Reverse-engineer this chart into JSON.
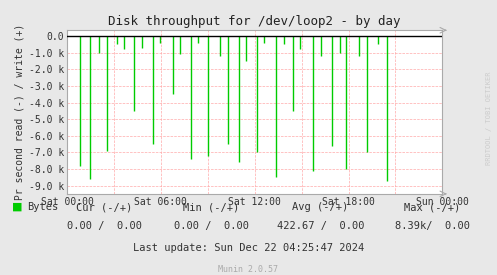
{
  "title": "Disk throughput for /dev/loop2 - by day",
  "ylabel": "Pr second read (-) / write (+)",
  "background_color": "#e8e8e8",
  "plot_bg_color": "#ffffff",
  "grid_color_major": "#aaaaaa",
  "grid_color_minor": "#ffaaaa",
  "x_tick_labels": [
    "Sat 00:00",
    "Sat 06:00",
    "Sat 12:00",
    "Sat 18:00",
    "Sun 00:00"
  ],
  "ylim_min": -9500,
  "ylim_max": 350,
  "yticks": [
    0,
    -1000,
    -2000,
    -3000,
    -4000,
    -5000,
    -6000,
    -7000,
    -8000,
    -9000
  ],
  "ytick_labels": [
    "0.0",
    "-1.0 k",
    "-2.0 k",
    "-3.0 k",
    "-4.0 k",
    "-5.0 k",
    "-6.0 k",
    "-7.0 k",
    "-8.0 k",
    "-9.0 k"
  ],
  "line_color": "#00cc00",
  "line_color_zero": "#000000",
  "legend_label": "Bytes",
  "legend_color": "#00cc00",
  "footer_cur_label": "Cur (-/+)",
  "footer_min_label": "Min (-/+)",
  "footer_avg_label": "Avg (-/+)",
  "footer_max_label": "Max (-/+)",
  "footer_vals_cur": "0.00 /  0.00",
  "footer_vals_min": "0.00 /  0.00",
  "footer_vals_avg": "422.67 /  0.00",
  "footer_vals_max": "8.39k/  0.00",
  "last_update": "Last update: Sun Dec 22 04:25:47 2024",
  "munin_version": "Munin 2.0.57",
  "rrdtool_label": "RRDTOOL / TOBI OETIKER",
  "spike_positions": [
    0.035,
    0.06,
    0.085,
    0.107,
    0.133,
    0.152,
    0.178,
    0.2,
    0.228,
    0.248,
    0.283,
    0.302,
    0.33,
    0.35,
    0.375,
    0.408,
    0.43,
    0.457,
    0.478,
    0.505,
    0.525,
    0.558,
    0.577,
    0.603,
    0.622,
    0.655,
    0.677,
    0.705,
    0.727,
    0.742,
    0.778,
    0.8,
    0.828,
    0.852
  ],
  "spike_depths": [
    -7800,
    -8600,
    -1000,
    -6900,
    -500,
    -800,
    -4500,
    -700,
    -6500,
    -400,
    -3500,
    -1100,
    -7400,
    -400,
    -7200,
    -1200,
    -6500,
    -7600,
    -1500,
    -7000,
    -400,
    -8500,
    -500,
    -4500,
    -800,
    -8100,
    -1200,
    -6600,
    -1000,
    -8000,
    -1200,
    -7000,
    -500,
    -8700
  ]
}
